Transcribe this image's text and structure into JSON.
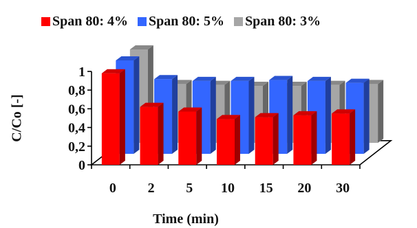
{
  "chart_data": {
    "type": "bar",
    "subtype": "3d-clustered-column",
    "categories": [
      "0",
      "2",
      "5",
      "10",
      "15",
      "20",
      "30"
    ],
    "series": [
      {
        "name": "Span 80:  4%",
        "color": "#ff0000",
        "values": [
          0.98,
          0.62,
          0.57,
          0.49,
          0.51,
          0.53,
          0.55
        ]
      },
      {
        "name": "Span 80:  5%",
        "color": "#3366ff",
        "values": [
          1.0,
          0.8,
          0.78,
          0.78,
          0.79,
          0.78,
          0.76
        ]
      },
      {
        "name": "Span 80:  3%",
        "color": "#a6a6a6",
        "values": [
          1.0,
          0.63,
          0.62,
          0.61,
          0.61,
          0.62,
          0.63
        ]
      }
    ],
    "xlabel": "Time (min)",
    "ylabel": "C/Co [-]",
    "yticks": [
      "0",
      "0,2",
      "0,4",
      "0,6",
      "0,8",
      "1"
    ],
    "ylim": [
      0,
      1
    ],
    "legend_position": "top"
  }
}
